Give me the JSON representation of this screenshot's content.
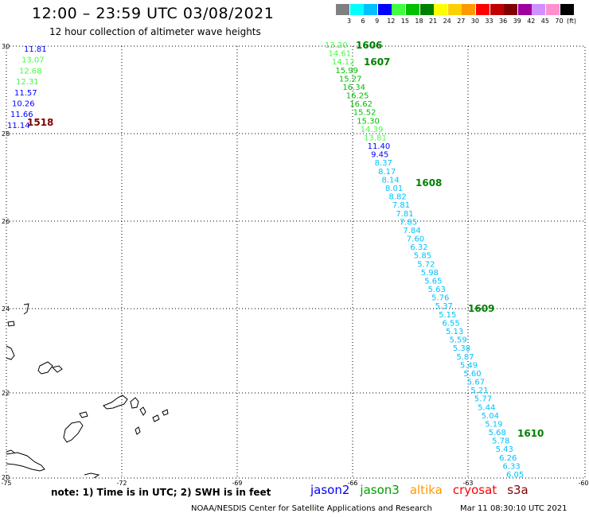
{
  "title": "12:00 – 23:59 UTC 03/08/2021",
  "subtitle": "12 hour collection of altimeter wave heights",
  "legend": {
    "unit": "(ft)",
    "items": [
      {
        "label": "3",
        "color": "#808080"
      },
      {
        "label": "6",
        "color": "#00ffff"
      },
      {
        "label": "9",
        "color": "#00c0ff"
      },
      {
        "label": "12",
        "color": "#0000ff"
      },
      {
        "label": "15",
        "color": "#40ff40"
      },
      {
        "label": "18",
        "color": "#00c000"
      },
      {
        "label": "21",
        "color": "#008000"
      },
      {
        "label": "24",
        "color": "#ffff00"
      },
      {
        "label": "27",
        "color": "#ffd000"
      },
      {
        "label": "30",
        "color": "#ff9900"
      },
      {
        "label": "33",
        "color": "#ff0000"
      },
      {
        "label": "36",
        "color": "#c00000"
      },
      {
        "label": "39",
        "color": "#800000"
      },
      {
        "label": "42",
        "color": "#a000a0"
      },
      {
        "label": "45",
        "color": "#d090ff"
      },
      {
        "label": "70",
        "color": "#ff90d0"
      },
      {
        "label": "",
        "color": "#000000"
      }
    ]
  },
  "axes": {
    "lon_labels": [
      "-75",
      "-72",
      "-69",
      "-66",
      "-63",
      "-60"
    ],
    "lat_labels": [
      "30",
      "28",
      "26",
      "24",
      "22",
      "20"
    ]
  },
  "west_track": [
    {
      "v": "11.81",
      "c": "#0000ff"
    },
    {
      "v": "13.07",
      "c": "#40ff40"
    },
    {
      "v": "12.68",
      "c": "#40ff40"
    },
    {
      "v": "12.31",
      "c": "#40ff40"
    },
    {
      "v": "11.57",
      "c": "#0000ff"
    },
    {
      "v": "10.26",
      "c": "#0000ff"
    },
    {
      "v": "11.66",
      "c": "#0000ff"
    },
    {
      "v": "11.14",
      "c": "#0000ff"
    }
  ],
  "main_track": [
    {
      "v": "13.20",
      "c": "#40ff40"
    },
    {
      "v": "14.61",
      "c": "#40ff40"
    },
    {
      "v": "14.12",
      "c": "#40ff40"
    },
    {
      "v": "15.99",
      "c": "#00c000"
    },
    {
      "v": "15.27",
      "c": "#00c000"
    },
    {
      "v": "16.34",
      "c": "#00c000"
    },
    {
      "v": "16.25",
      "c": "#00c000"
    },
    {
      "v": "16.62",
      "c": "#00c000"
    },
    {
      "v": "15.52",
      "c": "#00c000"
    },
    {
      "v": "15.30",
      "c": "#00c000"
    },
    {
      "v": "14.39",
      "c": "#40ff40"
    },
    {
      "v": "13.81",
      "c": "#40ff40"
    },
    {
      "v": "11.40",
      "c": "#0000ff"
    },
    {
      "v": "9.45",
      "c": "#0000ff"
    },
    {
      "v": "8.37",
      "c": "#00c0ff"
    },
    {
      "v": "8.17",
      "c": "#00c0ff"
    },
    {
      "v": "8.14",
      "c": "#00c0ff"
    },
    {
      "v": "8.01",
      "c": "#00c0ff"
    },
    {
      "v": "8.82",
      "c": "#00c0ff"
    },
    {
      "v": "7.81",
      "c": "#00c0ff"
    },
    {
      "v": "7.81",
      "c": "#00c0ff"
    },
    {
      "v": "7.85",
      "c": "#00c0ff"
    },
    {
      "v": "7.84",
      "c": "#00c0ff"
    },
    {
      "v": "7.60",
      "c": "#00c0ff"
    },
    {
      "v": "6.32",
      "c": "#00c0ff"
    },
    {
      "v": "5.85",
      "c": "#00c0ff"
    },
    {
      "v": "5.72",
      "c": "#00c0ff"
    },
    {
      "v": "5.98",
      "c": "#00c0ff"
    },
    {
      "v": "5.65",
      "c": "#00c0ff"
    },
    {
      "v": "5.63",
      "c": "#00c0ff"
    },
    {
      "v": "5.76",
      "c": "#00c0ff"
    },
    {
      "v": "5.37",
      "c": "#00c0ff"
    },
    {
      "v": "5.15",
      "c": "#00c0ff"
    },
    {
      "v": "6.55",
      "c": "#00c0ff"
    },
    {
      "v": "5.13",
      "c": "#00c0ff"
    },
    {
      "v": "5.59",
      "c": "#00c0ff"
    },
    {
      "v": "5.38",
      "c": "#00c0ff"
    },
    {
      "v": "5.87",
      "c": "#00c0ff"
    },
    {
      "v": "5.49",
      "c": "#00c0ff"
    },
    {
      "v": "5.60",
      "c": "#00c0ff"
    },
    {
      "v": "5.67",
      "c": "#00c0ff"
    },
    {
      "v": "5.21",
      "c": "#00c0ff"
    },
    {
      "v": "5.77",
      "c": "#00c0ff"
    },
    {
      "v": "5.44",
      "c": "#00c0ff"
    },
    {
      "v": "5.04",
      "c": "#00c0ff"
    },
    {
      "v": "5.19",
      "c": "#00c0ff"
    },
    {
      "v": "5.68",
      "c": "#00c0ff"
    },
    {
      "v": "5.78",
      "c": "#00c0ff"
    },
    {
      "v": "5.43",
      "c": "#00c0ff"
    },
    {
      "v": "6.26",
      "c": "#00c0ff"
    },
    {
      "v": "6.33",
      "c": "#00c0ff"
    },
    {
      "v": "6.05",
      "c": "#00c0ff"
    }
  ],
  "pass_times": [
    {
      "v": "1518",
      "c": "#800000"
    },
    {
      "v": "1606",
      "c": "#008000"
    },
    {
      "v": "1607",
      "c": "#008000"
    },
    {
      "v": "1608",
      "c": "#008000"
    },
    {
      "v": "1609",
      "c": "#008000"
    },
    {
      "v": "1610",
      "c": "#008000"
    }
  ],
  "note": "note: 1) Time is in UTC; 2) SWH is in feet",
  "satellites": [
    {
      "name": "jason2",
      "color": "#0000ff"
    },
    {
      "name": "jason3",
      "color": "#00a000"
    },
    {
      "name": "altika",
      "color": "#ff9900"
    },
    {
      "name": "cryosat",
      "color": "#ff0000"
    },
    {
      "name": "s3a",
      "color": "#800000"
    }
  ],
  "footer": {
    "center": "NOAA/NESDIS Center for Satellite Applications and Research",
    "timestamp": "Mar 11 08:30:10 UTC 2021"
  }
}
